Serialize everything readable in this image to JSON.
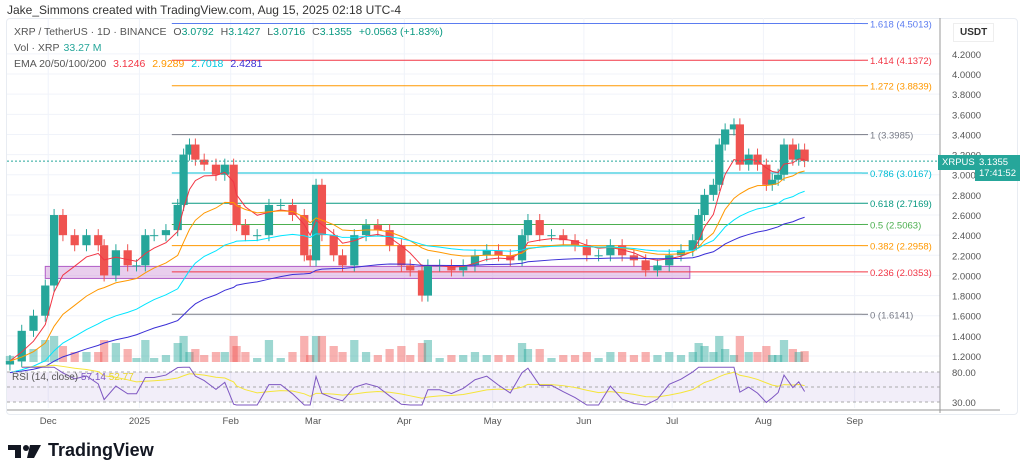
{
  "credit": "Jake_Simmons created with TradingView.com, Aug 15, 2025 02:18 UTC-4",
  "legend": {
    "symbol": "XRP / TetherUS · 1D · BINANCE",
    "o_label": "O",
    "o": "3.0792",
    "h_label": "H",
    "h": "3.1427",
    "l_label": "L",
    "l": "3.0716",
    "c_label": "C",
    "c": "3.1355",
    "change": "+0.0563 (+1.83%)",
    "vol_label": "Vol · XRP",
    "vol": "33.27 M",
    "ema_label": "EMA 20/50/100/200",
    "ema20": "3.1246",
    "ema50": "2.9289",
    "ema100": "2.7018",
    "ema200": "2.4281"
  },
  "rsi": {
    "label": "RSI (14, close)",
    "value": "57.14",
    "ma": "52.77",
    "levels": [
      "80.00",
      "30.00"
    ]
  },
  "currency": "USDT",
  "last_price": {
    "symbol": "XRPUSDT",
    "price": "3.1355",
    "countdown": "17:41:52"
  },
  "logo": "TradingView",
  "colors": {
    "up": "#26a69a",
    "down": "#ef5350",
    "ema20": "#f23645",
    "ema50": "#ff9800",
    "ema100": "#00e5ff",
    "ema200": "#3b2fd6",
    "rsi": "#7e57c2",
    "rsi_ma": "#f5e53a",
    "zone": "#ce93d8"
  },
  "chart_data": {
    "type": "candlestick",
    "ylim": [
      1.1,
      4.6
    ],
    "yticks": [
      1.2,
      1.4,
      1.6,
      1.8,
      2.0,
      2.2,
      2.4,
      2.6,
      2.8,
      3.0,
      3.2,
      3.4,
      3.6,
      3.8,
      4.0,
      4.2
    ],
    "xticks": [
      {
        "date": "2024-12-01",
        "label": "Dec"
      },
      {
        "date": "2025-01-01",
        "label": "2025"
      },
      {
        "date": "2025-02-01",
        "label": "Feb"
      },
      {
        "date": "2025-03-01",
        "label": "Mar"
      },
      {
        "date": "2025-04-01",
        "label": "Apr"
      },
      {
        "date": "2025-05-01",
        "label": "May"
      },
      {
        "date": "2025-06-01",
        "label": "Jun"
      },
      {
        "date": "2025-07-01",
        "label": "Jul"
      },
      {
        "date": "2025-08-01",
        "label": "Aug"
      },
      {
        "date": "2025-09-01",
        "label": "Sep"
      }
    ],
    "xrange": [
      "2024-11-17",
      "2025-09-30"
    ],
    "closes": [
      [
        "2024-11-18",
        1.15
      ],
      [
        "2024-11-22",
        1.45
      ],
      [
        "2024-11-26",
        1.6
      ],
      [
        "2024-11-30",
        1.9
      ],
      [
        "2024-12-03",
        2.6
      ],
      [
        "2024-12-06",
        2.4
      ],
      [
        "2024-12-10",
        2.3
      ],
      [
        "2024-12-14",
        2.4
      ],
      [
        "2024-12-18",
        2.3
      ],
      [
        "2024-12-20",
        2.0
      ],
      [
        "2024-12-24",
        2.25
      ],
      [
        "2024-12-28",
        2.1
      ],
      [
        "2024-12-31",
        2.1
      ],
      [
        "2025-01-03",
        2.4
      ],
      [
        "2025-01-06",
        2.4
      ],
      [
        "2025-01-10",
        2.45
      ],
      [
        "2025-01-14",
        2.7
      ],
      [
        "2025-01-16",
        3.2
      ],
      [
        "2025-01-18",
        3.3
      ],
      [
        "2025-01-20",
        3.15
      ],
      [
        "2025-01-23",
        3.1
      ],
      [
        "2025-01-27",
        3.0
      ],
      [
        "2025-01-30",
        3.1
      ],
      [
        "2025-02-02",
        2.7
      ],
      [
        "2025-02-03",
        2.5
      ],
      [
        "2025-02-06",
        2.4
      ],
      [
        "2025-02-10",
        2.4
      ],
      [
        "2025-02-14",
        2.7
      ],
      [
        "2025-02-18",
        2.7
      ],
      [
        "2025-02-22",
        2.6
      ],
      [
        "2025-02-26",
        2.2
      ],
      [
        "2025-02-28",
        2.15
      ],
      [
        "2025-03-02",
        2.9
      ],
      [
        "2025-03-04",
        2.4
      ],
      [
        "2025-03-08",
        2.2
      ],
      [
        "2025-03-11",
        2.1
      ],
      [
        "2025-03-15",
        2.4
      ],
      [
        "2025-03-19",
        2.5
      ],
      [
        "2025-03-23",
        2.45
      ],
      [
        "2025-03-27",
        2.3
      ],
      [
        "2025-03-31",
        2.1
      ],
      [
        "2025-04-03",
        2.05
      ],
      [
        "2025-04-07",
        1.8
      ],
      [
        "2025-04-09",
        2.1
      ],
      [
        "2025-04-13",
        2.1
      ],
      [
        "2025-04-17",
        2.05
      ],
      [
        "2025-04-21",
        2.1
      ],
      [
        "2025-04-25",
        2.2
      ],
      [
        "2025-04-29",
        2.25
      ],
      [
        "2025-05-03",
        2.2
      ],
      [
        "2025-05-07",
        2.15
      ],
      [
        "2025-05-11",
        2.4
      ],
      [
        "2025-05-13",
        2.55
      ],
      [
        "2025-05-17",
        2.4
      ],
      [
        "2025-05-21",
        2.4
      ],
      [
        "2025-05-25",
        2.35
      ],
      [
        "2025-05-29",
        2.3
      ],
      [
        "2025-06-02",
        2.2
      ],
      [
        "2025-06-06",
        2.2
      ],
      [
        "2025-06-10",
        2.3
      ],
      [
        "2025-06-14",
        2.2
      ],
      [
        "2025-06-18",
        2.15
      ],
      [
        "2025-06-22",
        2.05
      ],
      [
        "2025-06-26",
        2.1
      ],
      [
        "2025-06-30",
        2.2
      ],
      [
        "2025-07-04",
        2.25
      ],
      [
        "2025-07-08",
        2.35
      ],
      [
        "2025-07-10",
        2.6
      ],
      [
        "2025-07-12",
        2.8
      ],
      [
        "2025-07-15",
        2.9
      ],
      [
        "2025-07-17",
        3.3
      ],
      [
        "2025-07-19",
        3.45
      ],
      [
        "2025-07-22",
        3.5
      ],
      [
        "2025-07-24",
        3.1
      ],
      [
        "2025-07-27",
        3.2
      ],
      [
        "2025-07-30",
        3.1
      ],
      [
        "2025-08-02",
        2.9
      ],
      [
        "2025-08-04",
        2.95
      ],
      [
        "2025-08-06",
        3.0
      ],
      [
        "2025-08-08",
        3.3
      ],
      [
        "2025-08-11",
        3.15
      ],
      [
        "2025-08-13",
        3.25
      ],
      [
        "2025-08-15",
        3.1355
      ]
    ],
    "fib": {
      "start": "2025-01-12",
      "levels": [
        {
          "ratio": "1.618",
          "price": 4.5013,
          "label": "1.618 (4.5013)",
          "color": "#5b7cf0"
        },
        {
          "ratio": "1.414",
          "price": 4.1372,
          "label": "1.414 (4.1372)",
          "color": "#f23645"
        },
        {
          "ratio": "1.272",
          "price": 3.8839,
          "label": "1.272 (3.8839)",
          "color": "#ff9800"
        },
        {
          "ratio": "1",
          "price": 3.3985,
          "label": "1 (3.3985)",
          "color": "#787b86"
        },
        {
          "ratio": "0.786",
          "price": 3.0167,
          "label": "0.786 (3.0167)",
          "color": "#00bcd4"
        },
        {
          "ratio": "0.618",
          "price": 2.7169,
          "label": "0.618 (2.7169)",
          "color": "#089981"
        },
        {
          "ratio": "0.5",
          "price": 2.5063,
          "label": "0.5 (2.5063)",
          "color": "#4caf50"
        },
        {
          "ratio": "0.382",
          "price": 2.2958,
          "label": "0.382 (2.2958)",
          "color": "#ff9800"
        },
        {
          "ratio": "0.236",
          "price": 2.0353,
          "label": "0.236 (2.0353)",
          "color": "#f23645"
        },
        {
          "ratio": "0",
          "price": 1.6141,
          "label": "0 (1.6141)",
          "color": "#787b86"
        }
      ]
    },
    "zone": {
      "from": "2024-11-30",
      "to": "2025-07-07",
      "low": 2.0,
      "high": 2.06
    }
  }
}
